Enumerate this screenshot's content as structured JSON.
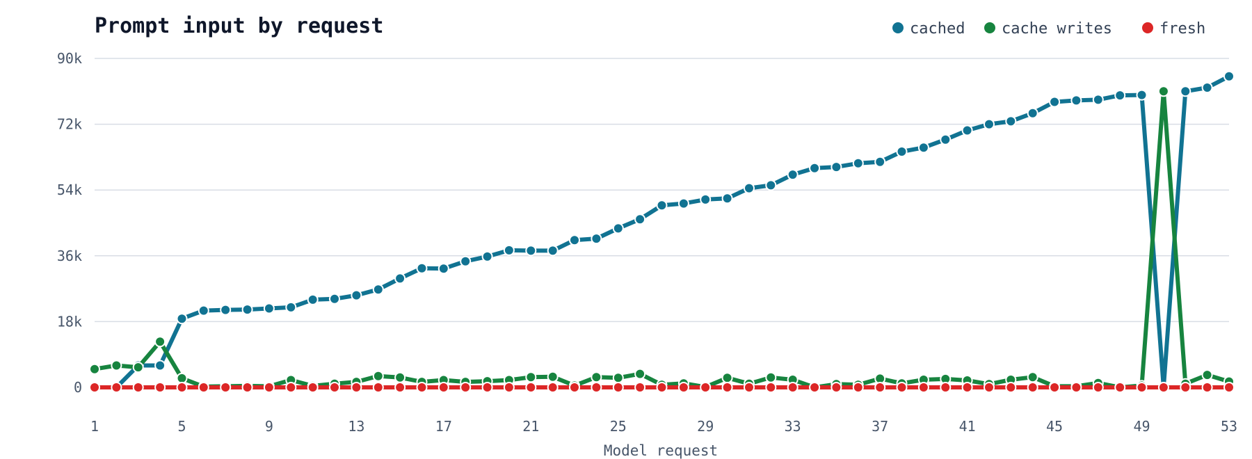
{
  "chart_data": {
    "type": "line",
    "title": "Prompt input by request",
    "xlabel": "Model request",
    "ylabel": "",
    "xlim": [
      1,
      53
    ],
    "ylim": [
      0,
      90000
    ],
    "y_ticks": [
      {
        "value": 0,
        "label": "0"
      },
      {
        "value": 18000,
        "label": "18k"
      },
      {
        "value": 36000,
        "label": "36k"
      },
      {
        "value": 54000,
        "label": "54k"
      },
      {
        "value": 72000,
        "label": "72k"
      },
      {
        "value": 90000,
        "label": "90k"
      }
    ],
    "x_ticks": [
      1,
      5,
      9,
      13,
      17,
      21,
      25,
      29,
      33,
      37,
      41,
      45,
      49,
      53
    ],
    "legend_position": "top-right",
    "grid": true,
    "x": [
      1,
      2,
      3,
      4,
      5,
      6,
      7,
      8,
      9,
      10,
      11,
      12,
      13,
      14,
      15,
      16,
      17,
      18,
      19,
      20,
      21,
      22,
      23,
      24,
      25,
      26,
      27,
      28,
      29,
      30,
      31,
      32,
      33,
      34,
      35,
      36,
      37,
      38,
      39,
      40,
      41,
      42,
      43,
      44,
      45,
      46,
      47,
      48,
      49,
      50,
      51,
      52,
      53
    ],
    "series": [
      {
        "name": "cached",
        "color": "#117392",
        "values": [
          null,
          0,
          6000,
          6000,
          18800,
          21000,
          21200,
          21300,
          21600,
          21900,
          24000,
          24200,
          25200,
          26800,
          29800,
          32600,
          32500,
          34500,
          35800,
          37500,
          37400,
          37400,
          40300,
          40700,
          43500,
          46000,
          49800,
          50300,
          51400,
          51700,
          54500,
          55300,
          58200,
          60000,
          60300,
          61300,
          61700,
          64500,
          65600,
          67800,
          70300,
          72000,
          72800,
          75000,
          78100,
          78500,
          78700,
          79900,
          80000,
          0,
          81000,
          82000,
          85100
        ]
      },
      {
        "name": "cache writes",
        "color": "#17843f",
        "values": [
          5000,
          6000,
          5500,
          12500,
          2500,
          200,
          300,
          400,
          300,
          2000,
          400,
          1000,
          1500,
          3100,
          2700,
          1500,
          2000,
          1500,
          1700,
          2000,
          2800,
          2900,
          500,
          2800,
          2600,
          3700,
          700,
          1100,
          100,
          2600,
          1000,
          2700,
          2100,
          0,
          900,
          700,
          2400,
          1100,
          2100,
          2300,
          1900,
          900,
          2100,
          2800,
          300,
          300,
          1200,
          0,
          500,
          81000,
          1000,
          3400,
          1600
        ]
      },
      {
        "name": "fresh",
        "color": "#dc2626",
        "values": [
          0,
          0,
          0,
          0,
          0,
          0,
          0,
          0,
          0,
          0,
          0,
          0,
          0,
          0,
          0,
          0,
          0,
          0,
          0,
          0,
          0,
          0,
          0,
          0,
          0,
          0,
          0,
          0,
          0,
          0,
          0,
          0,
          0,
          0,
          0,
          0,
          0,
          0,
          0,
          0,
          0,
          0,
          0,
          0,
          0,
          0,
          0,
          0,
          0,
          0,
          0,
          0,
          0
        ]
      }
    ]
  }
}
